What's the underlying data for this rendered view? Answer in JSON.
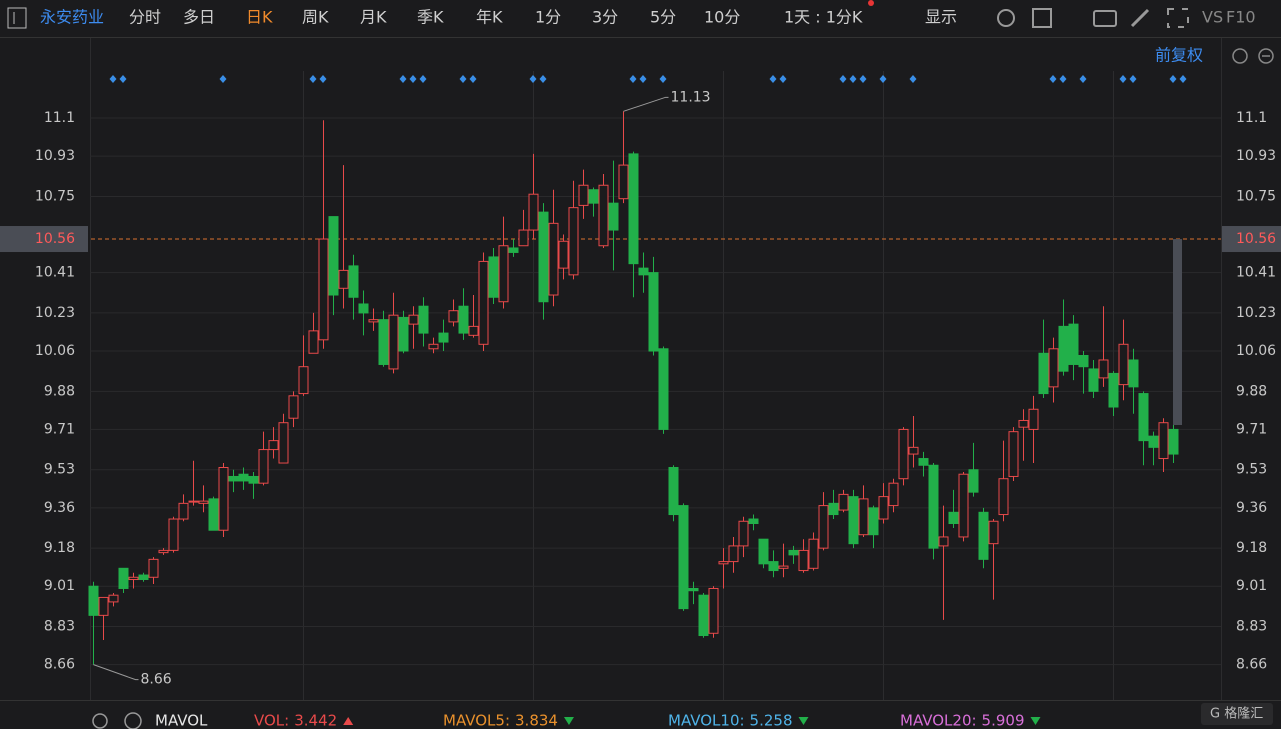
{
  "toolbar": {
    "stock": "永安药业",
    "tabs": [
      "分时",
      "多日",
      "日K",
      "周K",
      "月K",
      "季K",
      "年K",
      "1分",
      "3分",
      "5分",
      "10分"
    ],
    "active_tab": 2,
    "period": "1天 : 1分K",
    "display": "显示",
    "vs": "VS",
    "f10": "F10",
    "adjust": "前复权"
  },
  "indicators": {
    "name": "MAVOL",
    "items": [
      {
        "label": "VOL:",
        "value": 3.442,
        "color": "#e84a4a",
        "trend": "up"
      },
      {
        "label": "MAVOL5:",
        "value": 3.834,
        "color": "#e8902c",
        "trend": "down"
      },
      {
        "label": "MAVOL10:",
        "value": 5.258,
        "color": "#4fb3e8",
        "trend": "down"
      },
      {
        "label": "MAVOL20:",
        "value": 5.909,
        "color": "#d86fd8",
        "trend": "down"
      }
    ]
  },
  "chart_data": {
    "type": "candlestick",
    "up_color": "#e84a4a",
    "down_color": "#22b04a",
    "ylim": [
      8.52,
      11.31
    ],
    "yticks": [
      8.66,
      8.83,
      9.01,
      9.18,
      9.36,
      9.53,
      9.71,
      9.88,
      10.06,
      10.23,
      10.41,
      10.75,
      10.93,
      11.1
    ],
    "current_price": 10.56,
    "grid": true,
    "open": [
      9.01,
      8.88,
      8.94,
      9.09,
      9.04,
      9.06,
      9.05,
      9.16,
      9.17,
      9.31,
      9.39,
      9.38,
      9.4,
      9.26,
      9.5,
      9.51,
      9.5,
      9.47,
      9.62,
      9.56,
      9.76,
      9.87,
      10.05,
      10.11,
      10.66,
      10.34,
      10.44,
      10.27,
      10.19,
      10.2,
      9.98,
      10.21,
      10.18,
      10.26,
      10.07,
      10.14,
      10.19,
      10.26,
      10.13,
      10.09,
      10.48,
      10.28,
      10.52,
      10.53,
      10.6,
      10.68,
      10.31,
      10.43,
      10.4,
      10.71,
      10.78,
      10.53,
      10.72,
      10.74,
      10.94,
      10.43,
      10.41,
      10.07,
      9.54,
      9.37,
      9.0,
      8.97,
      8.8,
      9.11,
      9.12,
      9.19,
      9.31,
      9.22,
      9.12,
      9.09,
      9.17,
      9.08,
      9.09,
      9.18,
      9.38,
      9.35,
      9.41,
      9.24,
      9.36,
      9.31,
      9.37,
      9.49,
      9.6,
      9.58,
      9.55,
      9.19,
      9.34,
      9.23,
      9.53,
      9.34,
      9.2,
      9.33,
      9.5,
      9.72,
      9.71,
      10.05,
      9.9,
      10.17,
      10.18,
      10.04,
      9.98,
      9.94,
      9.96,
      9.91,
      10.02,
      9.87,
      9.68,
      9.58,
      9.71
    ],
    "high": [
      9.03,
      8.96,
      8.98,
      9.09,
      9.07,
      9.07,
      9.14,
      9.18,
      9.32,
      9.42,
      9.57,
      9.46,
      9.41,
      9.56,
      9.53,
      9.54,
      9.52,
      9.7,
      9.72,
      9.78,
      9.88,
      10.13,
      10.23,
      11.09,
      10.66,
      10.89,
      10.49,
      10.33,
      10.25,
      10.24,
      10.32,
      10.24,
      10.26,
      10.3,
      10.12,
      10.2,
      10.29,
      10.34,
      10.31,
      10.5,
      10.52,
      10.66,
      10.56,
      10.69,
      10.94,
      10.72,
      10.78,
      10.58,
      10.82,
      10.87,
      10.79,
      10.85,
      10.91,
      11.13,
      10.95,
      10.5,
      10.48,
      10.08,
      9.55,
      9.38,
      9.03,
      8.98,
      9.01,
      9.18,
      9.23,
      9.32,
      9.33,
      9.22,
      9.17,
      9.2,
      9.19,
      9.22,
      9.25,
      9.43,
      9.44,
      9.44,
      9.44,
      9.46,
      9.37,
      9.47,
      9.49,
      9.72,
      9.77,
      9.61,
      9.56,
      9.37,
      9.44,
      9.52,
      9.65,
      9.36,
      9.31,
      9.66,
      9.72,
      9.8,
      9.86,
      10.2,
      10.12,
      10.29,
      10.22,
      10.06,
      10.02,
      10.26,
      9.97,
      10.2,
      10.07,
      9.88,
      9.7,
      9.76,
      9.73
    ],
    "low": [
      8.66,
      8.77,
      8.92,
      8.98,
      9.0,
      9.03,
      9.02,
      9.15,
      9.16,
      9.3,
      9.37,
      9.34,
      9.26,
      9.23,
      9.43,
      9.44,
      9.4,
      9.46,
      9.58,
      9.56,
      9.72,
      9.86,
      10.05,
      10.07,
      10.22,
      10.25,
      10.2,
      10.13,
      10.15,
      9.99,
      9.96,
      10.05,
      10.07,
      10.08,
      10.05,
      10.06,
      10.17,
      10.11,
      10.12,
      10.06,
      10.27,
      10.25,
      10.48,
      10.53,
      10.56,
      10.2,
      10.26,
      10.38,
      10.38,
      10.65,
      10.66,
      10.52,
      10.42,
      10.72,
      10.3,
      10.32,
      10.04,
      9.69,
      9.3,
      8.9,
      8.93,
      8.78,
      8.78,
      9.0,
      9.07,
      9.14,
      9.26,
      9.09,
      9.05,
      9.05,
      9.11,
      9.07,
      9.08,
      9.17,
      9.31,
      9.34,
      9.18,
      9.23,
      9.18,
      9.29,
      9.34,
      9.46,
      9.54,
      9.5,
      9.13,
      8.86,
      9.27,
      9.21,
      9.41,
      9.09,
      8.95,
      9.3,
      9.48,
      9.57,
      9.56,
      9.85,
      9.83,
      9.95,
      9.93,
      9.87,
      9.85,
      9.9,
      9.77,
      9.84,
      9.78,
      9.55,
      9.55,
      9.52,
      9.56
    ],
    "close": [
      8.88,
      8.96,
      8.97,
      9.0,
      9.05,
      9.04,
      9.13,
      9.17,
      9.31,
      9.38,
      9.39,
      9.39,
      9.26,
      9.54,
      9.48,
      9.48,
      9.47,
      9.62,
      9.66,
      9.74,
      9.86,
      9.99,
      10.15,
      10.56,
      10.31,
      10.42,
      10.3,
      10.23,
      10.2,
      10.0,
      10.22,
      10.06,
      10.22,
      10.14,
      10.09,
      10.1,
      10.24,
      10.14,
      10.17,
      10.46,
      10.3,
      10.53,
      10.5,
      10.6,
      10.76,
      10.28,
      10.63,
      10.55,
      10.7,
      10.8,
      10.72,
      10.8,
      10.6,
      10.89,
      10.45,
      10.4,
      10.06,
      9.71,
      9.33,
      8.91,
      8.99,
      8.79,
      9.0,
      9.12,
      9.19,
      9.3,
      9.29,
      9.11,
      9.08,
      9.1,
      9.15,
      9.17,
      9.22,
      9.37,
      9.33,
      9.42,
      9.2,
      9.4,
      9.24,
      9.41,
      9.47,
      9.71,
      9.63,
      9.55,
      9.18,
      9.23,
      9.29,
      9.51,
      9.43,
      9.13,
      9.3,
      9.49,
      9.7,
      9.75,
      9.8,
      9.87,
      10.07,
      9.97,
      10.0,
      9.99,
      9.88,
      10.02,
      9.81,
      10.09,
      9.9,
      9.66,
      9.63,
      9.74,
      9.6
    ]
  }
}
